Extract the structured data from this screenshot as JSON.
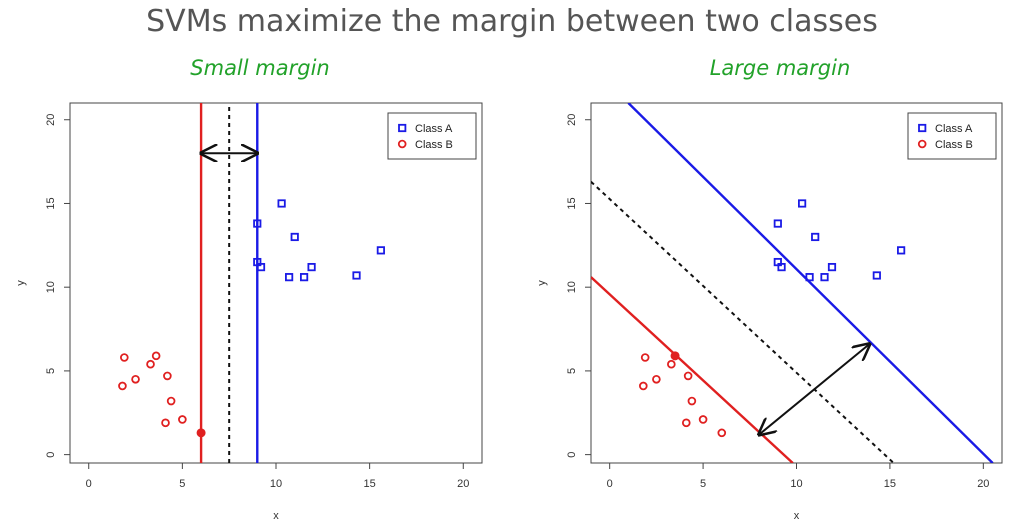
{
  "title": "SVMs maximize the margin between two classes",
  "chart_data": [
    {
      "type": "scatter",
      "title": "Small margin",
      "xlabel": "x",
      "ylabel": "y",
      "xlim": [
        -1,
        21
      ],
      "ylim": [
        -0.5,
        21
      ],
      "xticks": [
        0,
        5,
        10,
        15,
        20
      ],
      "yticks": [
        0,
        5,
        10,
        15,
        20
      ],
      "legend_position": "top-right",
      "series": [
        {
          "name": "Class A",
          "color": "#1a1ae6",
          "marker": "square",
          "points": [
            [
              9.0,
              13.8
            ],
            [
              10.3,
              15.0
            ],
            [
              11.0,
              13.0
            ],
            [
              9.0,
              11.5
            ],
            [
              9.2,
              11.2
            ],
            [
              10.7,
              10.6
            ],
            [
              11.5,
              10.6
            ],
            [
              11.9,
              11.2
            ],
            [
              14.3,
              10.7
            ],
            [
              15.6,
              12.2
            ]
          ]
        },
        {
          "name": "Class B",
          "color": "#e02020",
          "marker": "circle",
          "points": [
            [
              1.9,
              5.8
            ],
            [
              3.6,
              5.9
            ],
            [
              3.3,
              5.4
            ],
            [
              4.2,
              4.7
            ],
            [
              2.5,
              4.5
            ],
            [
              1.8,
              4.1
            ],
            [
              4.4,
              3.2
            ],
            [
              4.1,
              1.9
            ],
            [
              5.0,
              2.1
            ]
          ]
        }
      ],
      "highlight_points": [
        {
          "series": "Class B",
          "x": 6.0,
          "y": 1.3
        }
      ],
      "lines": [
        {
          "role": "class-b-boundary",
          "color": "#e02020",
          "style": "solid",
          "vertical_x": 6.0
        },
        {
          "role": "decision-boundary",
          "color": "#111111",
          "style": "dashed",
          "vertical_x": 7.5
        },
        {
          "role": "class-a-boundary",
          "color": "#1a1ae6",
          "style": "solid",
          "vertical_x": 9.0
        }
      ],
      "margin_arrow": {
        "from": [
          6.0,
          18.0
        ],
        "to": [
          9.0,
          18.0
        ]
      }
    },
    {
      "type": "scatter",
      "title": "Large margin",
      "xlabel": "x",
      "ylabel": "y",
      "xlim": [
        -1,
        21
      ],
      "ylim": [
        -0.5,
        21
      ],
      "xticks": [
        0,
        5,
        10,
        15,
        20
      ],
      "yticks": [
        0,
        5,
        10,
        15,
        20
      ],
      "legend_position": "top-right",
      "series": [
        {
          "name": "Class A",
          "color": "#1a1ae6",
          "marker": "square",
          "points": [
            [
              9.0,
              13.8
            ],
            [
              10.3,
              15.0
            ],
            [
              11.0,
              13.0
            ],
            [
              9.0,
              11.5
            ],
            [
              9.2,
              11.2
            ],
            [
              10.7,
              10.6
            ],
            [
              11.5,
              10.6
            ],
            [
              11.9,
              11.2
            ],
            [
              14.3,
              10.7
            ],
            [
              15.6,
              12.2
            ]
          ]
        },
        {
          "name": "Class B",
          "color": "#e02020",
          "marker": "circle",
          "points": [
            [
              1.9,
              5.8
            ],
            [
              3.3,
              5.4
            ],
            [
              4.2,
              4.7
            ],
            [
              2.5,
              4.5
            ],
            [
              1.8,
              4.1
            ],
            [
              4.4,
              3.2
            ],
            [
              4.1,
              1.9
            ],
            [
              5.0,
              2.1
            ],
            [
              6.0,
              1.3
            ]
          ]
        }
      ],
      "highlight_points": [
        {
          "series": "Class B",
          "x": 3.5,
          "y": 5.9
        }
      ],
      "lines": [
        {
          "role": "class-b-boundary",
          "color": "#e02020",
          "style": "solid",
          "from": [
            -1,
            10.6
          ],
          "to": [
            9.8,
            -0.5
          ]
        },
        {
          "role": "decision-boundary",
          "color": "#111111",
          "style": "dashed",
          "from": [
            -1,
            16.3
          ],
          "to": [
            15.2,
            -0.5
          ]
        },
        {
          "role": "class-a-boundary",
          "color": "#1a1ae6",
          "style": "solid",
          "from": [
            1,
            21
          ],
          "to": [
            20.5,
            -0.5
          ]
        }
      ],
      "margin_arrow": {
        "from": [
          8.0,
          1.2
        ],
        "to": [
          13.9,
          6.6
        ]
      }
    }
  ]
}
